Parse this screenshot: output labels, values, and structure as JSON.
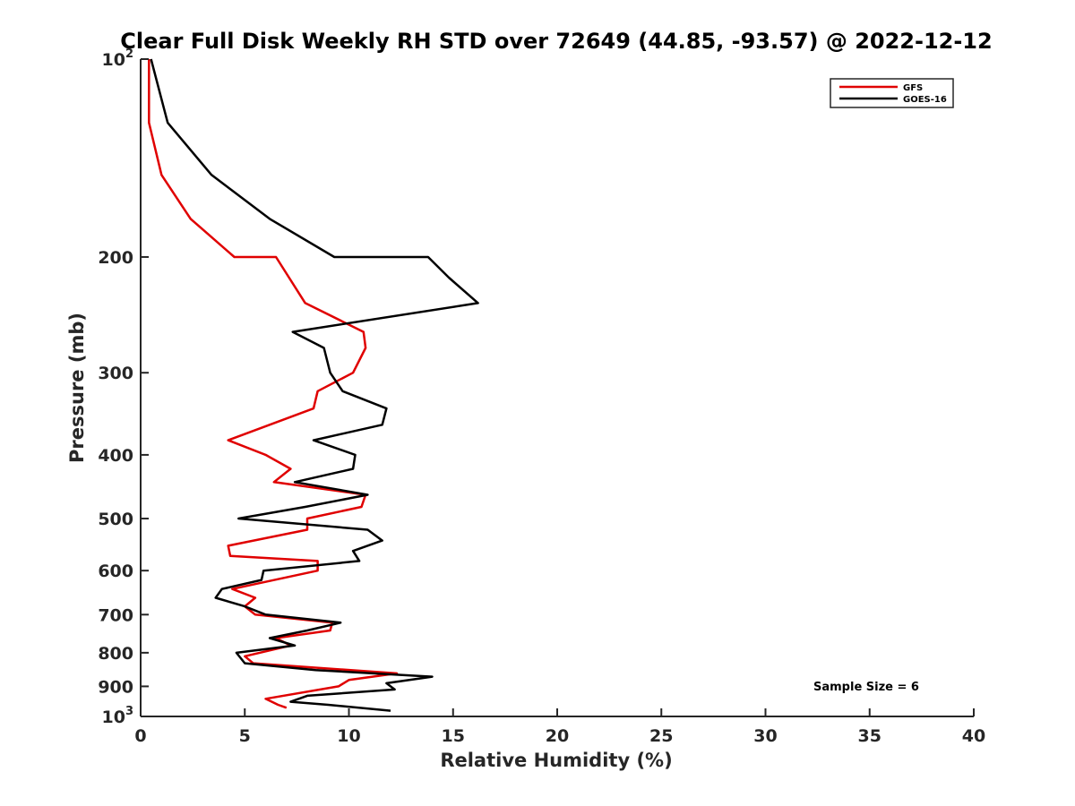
{
  "chart_data": {
    "type": "line",
    "title": "Clear Full Disk Weekly RH STD over 72649 (44.85, -93.57) @ 2022-12-12",
    "xlabel": "Relative Humidity (%)",
    "ylabel": "Pressure (mb)",
    "xlim": [
      0,
      40
    ],
    "ylim": [
      100,
      1000
    ],
    "y_scale": "log",
    "y_reversed": true,
    "x_ticks": [
      0,
      5,
      10,
      15,
      20,
      25,
      30,
      35,
      40
    ],
    "x_tick_labels": [
      "0",
      "5",
      "10",
      "15",
      "20",
      "25",
      "30",
      "35",
      "40"
    ],
    "y_ticks": [
      200,
      300,
      400,
      500,
      600,
      700,
      800,
      900
    ],
    "y_tick_labels": [
      "200",
      "300",
      "400",
      "500",
      "600",
      "700",
      "800",
      "900"
    ],
    "y_end_ticks": [
      {
        "value": 100,
        "base": "10",
        "exp": "2"
      },
      {
        "value": 1000,
        "base": "10",
        "exp": "3"
      }
    ],
    "grid": false,
    "legend_position": "top-right",
    "annotation": "Sample Size = 6",
    "series": [
      {
        "name": "GFS",
        "color": "#e00000",
        "points": [
          [
            0.4,
            100
          ],
          [
            0.4,
            125
          ],
          [
            1.0,
            150
          ],
          [
            2.4,
            175
          ],
          [
            4.5,
            200
          ],
          [
            6.5,
            200
          ],
          [
            7.9,
            235
          ],
          [
            10.7,
            260
          ],
          [
            10.8,
            275
          ],
          [
            10.2,
            300
          ],
          [
            8.5,
            320
          ],
          [
            8.3,
            340
          ],
          [
            4.2,
            380
          ],
          [
            6.0,
            400
          ],
          [
            7.2,
            420
          ],
          [
            6.4,
            440
          ],
          [
            10.8,
            460
          ],
          [
            10.6,
            480
          ],
          [
            8.0,
            500
          ],
          [
            8.0,
            520
          ],
          [
            4.2,
            550
          ],
          [
            4.3,
            570
          ],
          [
            8.5,
            580
          ],
          [
            8.5,
            600
          ],
          [
            4.4,
            640
          ],
          [
            5.5,
            660
          ],
          [
            5.0,
            680
          ],
          [
            5.5,
            700
          ],
          [
            9.2,
            720
          ],
          [
            9.1,
            740
          ],
          [
            6.5,
            760
          ],
          [
            7.2,
            780
          ],
          [
            5.0,
            810
          ],
          [
            5.4,
            830
          ],
          [
            12.3,
            860
          ],
          [
            10.0,
            880
          ],
          [
            9.5,
            900
          ],
          [
            6.0,
            940
          ],
          [
            6.6,
            960
          ],
          [
            7.0,
            970
          ]
        ]
      },
      {
        "name": "GOES-16",
        "color": "#000000",
        "points": [
          [
            0.5,
            100
          ],
          [
            1.3,
            125
          ],
          [
            3.4,
            150
          ],
          [
            6.2,
            175
          ],
          [
            9.3,
            200
          ],
          [
            13.8,
            200
          ],
          [
            14.8,
            215
          ],
          [
            16.2,
            235
          ],
          [
            7.3,
            260
          ],
          [
            8.8,
            275
          ],
          [
            9.1,
            300
          ],
          [
            9.7,
            320
          ],
          [
            11.8,
            340
          ],
          [
            11.6,
            360
          ],
          [
            8.3,
            380
          ],
          [
            10.3,
            400
          ],
          [
            10.2,
            420
          ],
          [
            7.4,
            440
          ],
          [
            10.9,
            460
          ],
          [
            7.9,
            480
          ],
          [
            4.7,
            500
          ],
          [
            10.9,
            520
          ],
          [
            11.6,
            540
          ],
          [
            10.2,
            560
          ],
          [
            10.5,
            580
          ],
          [
            5.9,
            600
          ],
          [
            5.8,
            620
          ],
          [
            3.9,
            640
          ],
          [
            3.6,
            660
          ],
          [
            5.0,
            680
          ],
          [
            6.0,
            700
          ],
          [
            9.6,
            720
          ],
          [
            8.0,
            740
          ],
          [
            6.2,
            760
          ],
          [
            7.4,
            780
          ],
          [
            4.6,
            800
          ],
          [
            5.0,
            830
          ],
          [
            8.4,
            850
          ],
          [
            14.0,
            870
          ],
          [
            11.8,
            890
          ],
          [
            12.2,
            910
          ],
          [
            8.0,
            930
          ],
          [
            7.2,
            950
          ],
          [
            9.0,
            960
          ],
          [
            12.0,
            980
          ]
        ]
      }
    ]
  }
}
